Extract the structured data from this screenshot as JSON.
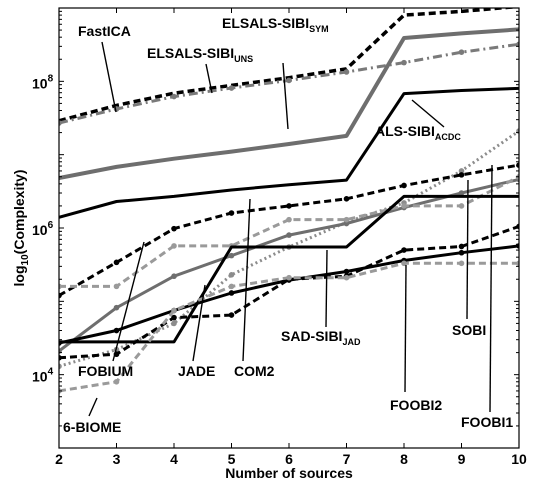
{
  "chart_data": {
    "type": "line",
    "title": "",
    "xlabel": "Number of sources",
    "ylabel_base": "log",
    "ylabel_sub": "10",
    "ylabel_rest": "(Complexity)",
    "x": [
      2,
      3,
      4,
      5,
      6,
      7,
      8,
      9,
      10
    ],
    "xlim": [
      2,
      10
    ],
    "ylim": [
      1000,
      1000000000
    ],
    "yscale": "log",
    "grid": false,
    "legend": "none",
    "x_ticks": [
      "2",
      "3",
      "4",
      "5",
      "6",
      "7",
      "8",
      "9",
      "10"
    ],
    "y_ticks": [
      {
        "value": 10000,
        "base": "10",
        "exp": "4"
      },
      {
        "value": 1000000,
        "base": "10",
        "exp": "6"
      },
      {
        "value": 100000000,
        "base": "10",
        "exp": "8"
      }
    ],
    "series": [
      {
        "name": "ELSALS-SIBI SYM",
        "style": "dash",
        "color": "#000000",
        "width": 3.5,
        "marker": "none",
        "values": [
          29000000,
          47000000,
          69000000,
          88000000,
          112000000,
          148000000,
          800000000,
          900000000,
          1050000000
        ]
      },
      {
        "name": "FastICA",
        "style": "dashdot",
        "color": "#7a7a7a",
        "width": 3,
        "marker": "dot",
        "values": [
          27000000,
          42000000,
          62000000,
          81000000,
          103000000,
          134000000,
          180000000,
          250000000,
          320000000
        ]
      },
      {
        "name": "ELSALS-SIBI UNS",
        "style": "solid",
        "color": "#6e6e6e",
        "width": 4,
        "marker": "none",
        "values": [
          4800000,
          6800000,
          8800000,
          11000000,
          14000000,
          18000000,
          390000000,
          450000000,
          510000000
        ]
      },
      {
        "name": "ALS-SIBI ACDC",
        "style": "solid",
        "color": "#000000",
        "width": 3,
        "marker": "none",
        "values": [
          1400000,
          2300000,
          2700000,
          3300000,
          3900000,
          4500000,
          68000000,
          75000000,
          80000000
        ]
      },
      {
        "name": "FOOBI1",
        "style": "dotted",
        "color": "#8c8c8c",
        "width": 3,
        "marker": "dot",
        "values": [
          13000,
          22000,
          50000,
          230000,
          550000,
          1200000,
          2200000,
          6000000,
          21000000
        ]
      },
      {
        "name": "SOBI",
        "style": "dash",
        "color": "#000000",
        "width": 3,
        "marker": "dot",
        "values": [
          120000,
          340000,
          980000,
          1600000,
          2000000,
          2500000,
          3800000,
          5300000,
          7200000
        ]
      },
      {
        "name": "COM2",
        "style": "solid",
        "color": "#6e6e6e",
        "width": 3,
        "marker": "dot",
        "values": [
          21000,
          82000,
          220000,
          420000,
          800000,
          1150000,
          1900000,
          3000000,
          4600000
        ]
      },
      {
        "name": "FOBIUM",
        "style": "dash",
        "color": "#9a9a9a",
        "width": 3,
        "marker": "dot",
        "values": [
          160000,
          160000,
          570000,
          570000,
          1300000,
          1300000,
          2000000,
          2000000,
          5000000
        ]
      },
      {
        "name": "SAD-SIBI JAD",
        "style": "solid",
        "color": "#000000",
        "width": 3,
        "marker": "none",
        "values": [
          28000,
          28000,
          28000,
          550000,
          550000,
          550000,
          2700000,
          2700000,
          2700000
        ]
      },
      {
        "name": "FOOBI2",
        "style": "dash",
        "color": "#000000",
        "width": 3,
        "marker": "dot",
        "values": [
          17000,
          19000,
          60000,
          65000,
          200000,
          220000,
          500000,
          560000,
          1050000
        ]
      },
      {
        "name": "JADE",
        "style": "solid",
        "color": "#000000",
        "width": 3,
        "marker": "dot",
        "values": [
          27000,
          40000,
          75000,
          130000,
          195000,
          255000,
          360000,
          460000,
          570000
        ]
      },
      {
        "name": "6-BIOME",
        "style": "dash",
        "color": "#9a9a9a",
        "width": 3,
        "marker": "dot",
        "values": [
          6000,
          8000,
          75000,
          160000,
          210000,
          210000,
          330000,
          330000,
          330000
        ]
      }
    ],
    "annotations": [
      {
        "text": "FastICA"
      },
      {
        "text": "ELSALS-SIBI",
        "sub": "UNS"
      },
      {
        "text": "ELSALS-SIBI",
        "sub": "SYM"
      },
      {
        "text": "ALS-SIBI",
        "sub": "ACDC"
      },
      {
        "text": "FOBIUM"
      },
      {
        "text": "JADE"
      },
      {
        "text": "COM2"
      },
      {
        "text": "SAD-SIBI",
        "sub": "JAD"
      },
      {
        "text": "SOBI"
      },
      {
        "text": "FOOBI2"
      },
      {
        "text": "FOOBI1"
      },
      {
        "text": "6-BIOME"
      }
    ]
  }
}
